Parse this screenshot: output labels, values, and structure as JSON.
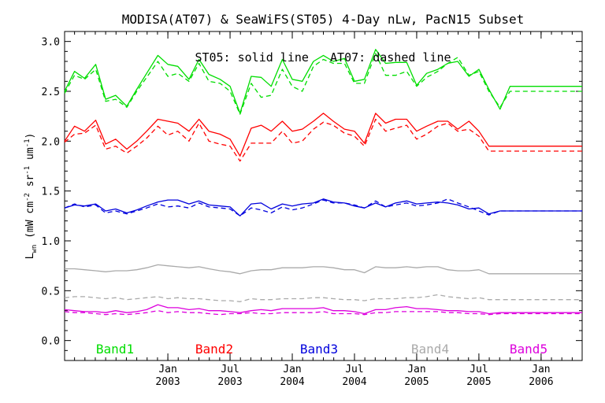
{
  "chart_data": {
    "type": "line",
    "title": "MODISA(AT07) & SeaWiFS(ST05) 4-Day nLw, PacN15 Subset",
    "annotation": "ST05: solid line   AT07: dashed line",
    "ylabel": "L",
    "ylabel_sub": "wn",
    "ylabel_rest": " (mW cm",
    "ylabel_sup1": "-2",
    "ylabel_mid": " sr",
    "ylabel_sup2": "-1",
    "ylabel_mid2": " um",
    "ylabel_sup3": "-1",
    "ylabel_end": ")",
    "ylim": [
      -0.2,
      3.1
    ],
    "yticks": [
      "0.0",
      "0.5",
      "1.0",
      "1.5",
      "2.0",
      "2.5",
      "3.0"
    ],
    "xlim": [
      2002.17,
      2006.33
    ],
    "xticks": [
      {
        "month": "Jan",
        "year": "2003",
        "x": 2003.0
      },
      {
        "month": "Jul",
        "year": "2003",
        "x": 2003.5
      },
      {
        "month": "Jan",
        "year": "2004",
        "x": 2004.0
      },
      {
        "month": "Jul",
        "year": "2004",
        "x": 2004.5
      },
      {
        "month": "Jan",
        "year": "2005",
        "x": 2005.0
      },
      {
        "month": "Jul",
        "year": "2005",
        "x": 2005.5
      },
      {
        "month": "Jan",
        "year": "2006",
        "x": 2006.0
      }
    ],
    "grid": false,
    "legend_position": "bottom",
    "x": [
      2002.17,
      2002.25,
      2002.33,
      2002.42,
      2002.5,
      2002.58,
      2002.67,
      2002.75,
      2002.83,
      2002.92,
      2003.0,
      2003.08,
      2003.17,
      2003.25,
      2003.33,
      2003.42,
      2003.5,
      2003.58,
      2003.67,
      2003.75,
      2003.83,
      2003.92,
      2004.0,
      2004.08,
      2004.17,
      2004.25,
      2004.33,
      2004.42,
      2004.5,
      2004.58,
      2004.67,
      2004.75,
      2004.83,
      2004.92,
      2005.0,
      2005.08,
      2005.17,
      2005.25,
      2005.33,
      2005.42,
      2005.5,
      2005.58,
      2005.67,
      2005.75,
      2005.83,
      2005.92,
      2006.0,
      2006.08,
      2006.17,
      2006.25,
      2006.33
    ],
    "series": [
      {
        "name": "Band1",
        "color": "#00dd00",
        "style": "solid",
        "values": [
          2.5,
          2.7,
          2.63,
          2.77,
          2.42,
          2.46,
          2.35,
          2.52,
          2.68,
          2.86,
          2.77,
          2.75,
          2.62,
          2.82,
          2.67,
          2.62,
          2.55,
          2.28,
          2.65,
          2.64,
          2.55,
          2.82,
          2.62,
          2.6,
          2.8,
          2.86,
          2.8,
          2.83,
          2.6,
          2.62,
          2.92,
          2.78,
          2.79,
          2.79,
          2.56,
          2.68,
          2.72,
          2.78,
          2.8,
          2.65,
          2.72,
          2.52,
          2.32,
          2.55,
          2.55,
          2.55,
          2.55,
          2.55,
          2.55,
          2.55,
          2.55
        ]
      },
      {
        "name": "Band1 AT07",
        "color": "#00dd00",
        "style": "dashed",
        "values": [
          2.48,
          2.66,
          2.62,
          2.72,
          2.4,
          2.42,
          2.34,
          2.5,
          2.64,
          2.8,
          2.65,
          2.68,
          2.6,
          2.78,
          2.6,
          2.58,
          2.5,
          2.27,
          2.58,
          2.44,
          2.46,
          2.72,
          2.55,
          2.5,
          2.75,
          2.82,
          2.78,
          2.78,
          2.58,
          2.58,
          2.88,
          2.66,
          2.66,
          2.7,
          2.55,
          2.64,
          2.7,
          2.78,
          2.84,
          2.66,
          2.7,
          2.5,
          2.34,
          2.5,
          2.5,
          2.5,
          2.5,
          2.5,
          2.5,
          2.5,
          2.5
        ]
      },
      {
        "name": "Band2",
        "color": "#ff0000",
        "style": "solid",
        "values": [
          2.0,
          2.15,
          2.1,
          2.21,
          1.97,
          2.02,
          1.92,
          2.0,
          2.1,
          2.22,
          2.2,
          2.18,
          2.1,
          2.22,
          2.1,
          2.07,
          2.02,
          1.85,
          2.13,
          2.16,
          2.1,
          2.2,
          2.1,
          2.12,
          2.2,
          2.28,
          2.2,
          2.12,
          2.1,
          1.98,
          2.28,
          2.18,
          2.22,
          2.22,
          2.1,
          2.15,
          2.2,
          2.2,
          2.12,
          2.2,
          2.1,
          1.95,
          1.95,
          1.95,
          1.95,
          1.95,
          1.95,
          1.95,
          1.95,
          1.95,
          1.95
        ]
      },
      {
        "name": "Band2 AT07",
        "color": "#ff0000",
        "style": "dashed",
        "values": [
          1.99,
          2.07,
          2.08,
          2.16,
          1.92,
          1.95,
          1.88,
          1.95,
          2.03,
          2.15,
          2.06,
          2.1,
          2.0,
          2.18,
          2.0,
          1.97,
          1.95,
          1.8,
          1.98,
          1.98,
          1.98,
          2.1,
          1.98,
          2.0,
          2.12,
          2.19,
          2.16,
          2.08,
          2.05,
          1.95,
          2.22,
          2.1,
          2.13,
          2.16,
          2.02,
          2.07,
          2.15,
          2.18,
          2.1,
          2.12,
          2.05,
          1.9,
          1.9,
          1.9,
          1.9,
          1.9,
          1.9,
          1.9,
          1.9,
          1.9,
          1.9
        ]
      },
      {
        "name": "Band3",
        "color": "#0000dd",
        "style": "solid",
        "values": [
          1.33,
          1.36,
          1.35,
          1.37,
          1.3,
          1.32,
          1.28,
          1.31,
          1.35,
          1.39,
          1.41,
          1.41,
          1.37,
          1.4,
          1.36,
          1.35,
          1.34,
          1.25,
          1.37,
          1.38,
          1.32,
          1.37,
          1.35,
          1.37,
          1.38,
          1.42,
          1.39,
          1.38,
          1.35,
          1.33,
          1.38,
          1.34,
          1.38,
          1.4,
          1.37,
          1.38,
          1.39,
          1.38,
          1.36,
          1.32,
          1.33,
          1.27,
          1.3,
          1.3,
          1.3,
          1.3,
          1.3,
          1.3,
          1.3,
          1.3,
          1.3
        ]
      },
      {
        "name": "Band3 AT07",
        "color": "#0000dd",
        "style": "dashed",
        "values": [
          1.33,
          1.37,
          1.34,
          1.36,
          1.28,
          1.3,
          1.27,
          1.3,
          1.33,
          1.37,
          1.34,
          1.35,
          1.33,
          1.38,
          1.34,
          1.33,
          1.32,
          1.25,
          1.33,
          1.31,
          1.28,
          1.34,
          1.31,
          1.33,
          1.37,
          1.41,
          1.38,
          1.38,
          1.36,
          1.33,
          1.4,
          1.34,
          1.36,
          1.38,
          1.35,
          1.36,
          1.38,
          1.42,
          1.38,
          1.34,
          1.3,
          1.26,
          1.3,
          1.3,
          1.3,
          1.3,
          1.3,
          1.3,
          1.3,
          1.3,
          1.3
        ]
      },
      {
        "name": "Band4",
        "color": "#aaaaaa",
        "style": "solid",
        "values": [
          0.72,
          0.72,
          0.71,
          0.7,
          0.69,
          0.7,
          0.7,
          0.71,
          0.73,
          0.76,
          0.75,
          0.74,
          0.73,
          0.74,
          0.72,
          0.7,
          0.69,
          0.67,
          0.7,
          0.71,
          0.71,
          0.73,
          0.73,
          0.73,
          0.74,
          0.74,
          0.73,
          0.71,
          0.71,
          0.68,
          0.74,
          0.73,
          0.73,
          0.74,
          0.73,
          0.74,
          0.74,
          0.71,
          0.7,
          0.7,
          0.71,
          0.67,
          0.67,
          0.67,
          0.67,
          0.67,
          0.67,
          0.67,
          0.67,
          0.67,
          0.67
        ]
      },
      {
        "name": "Band4 AT07",
        "color": "#aaaaaa",
        "style": "dashed",
        "values": [
          0.43,
          0.44,
          0.44,
          0.43,
          0.42,
          0.43,
          0.41,
          0.42,
          0.43,
          0.44,
          0.42,
          0.43,
          0.42,
          0.42,
          0.41,
          0.4,
          0.4,
          0.39,
          0.42,
          0.41,
          0.41,
          0.42,
          0.42,
          0.42,
          0.43,
          0.43,
          0.42,
          0.41,
          0.41,
          0.4,
          0.42,
          0.42,
          0.42,
          0.43,
          0.43,
          0.44,
          0.46,
          0.44,
          0.43,
          0.42,
          0.43,
          0.41,
          0.41,
          0.41,
          0.41,
          0.41,
          0.41,
          0.41,
          0.41,
          0.41,
          0.41
        ]
      },
      {
        "name": "Band5",
        "color": "#dd00dd",
        "style": "solid",
        "values": [
          0.31,
          0.3,
          0.29,
          0.29,
          0.28,
          0.3,
          0.28,
          0.29,
          0.31,
          0.36,
          0.33,
          0.33,
          0.31,
          0.32,
          0.3,
          0.3,
          0.29,
          0.28,
          0.3,
          0.31,
          0.3,
          0.32,
          0.32,
          0.32,
          0.32,
          0.33,
          0.3,
          0.3,
          0.29,
          0.27,
          0.31,
          0.31,
          0.33,
          0.34,
          0.32,
          0.32,
          0.31,
          0.3,
          0.3,
          0.29,
          0.29,
          0.27,
          0.28,
          0.28,
          0.28,
          0.28,
          0.28,
          0.28,
          0.28,
          0.28,
          0.28
        ]
      },
      {
        "name": "Band5 AT07",
        "color": "#dd00dd",
        "style": "dashed",
        "values": [
          0.29,
          0.28,
          0.28,
          0.27,
          0.26,
          0.27,
          0.26,
          0.27,
          0.28,
          0.3,
          0.28,
          0.29,
          0.28,
          0.28,
          0.27,
          0.26,
          0.27,
          0.27,
          0.28,
          0.27,
          0.27,
          0.28,
          0.28,
          0.28,
          0.28,
          0.29,
          0.27,
          0.27,
          0.27,
          0.26,
          0.28,
          0.28,
          0.29,
          0.29,
          0.29,
          0.29,
          0.29,
          0.28,
          0.28,
          0.27,
          0.27,
          0.26,
          0.27,
          0.27,
          0.27,
          0.27,
          0.27,
          0.27,
          0.27,
          0.27,
          0.27
        ]
      }
    ],
    "legend": [
      {
        "label": "Band1",
        "color": "#00dd00"
      },
      {
        "label": "Band2",
        "color": "#ff0000"
      },
      {
        "label": "Band3",
        "color": "#0000dd"
      },
      {
        "label": "Band4",
        "color": "#aaaaaa"
      },
      {
        "label": "Band5",
        "color": "#dd00dd"
      }
    ]
  }
}
